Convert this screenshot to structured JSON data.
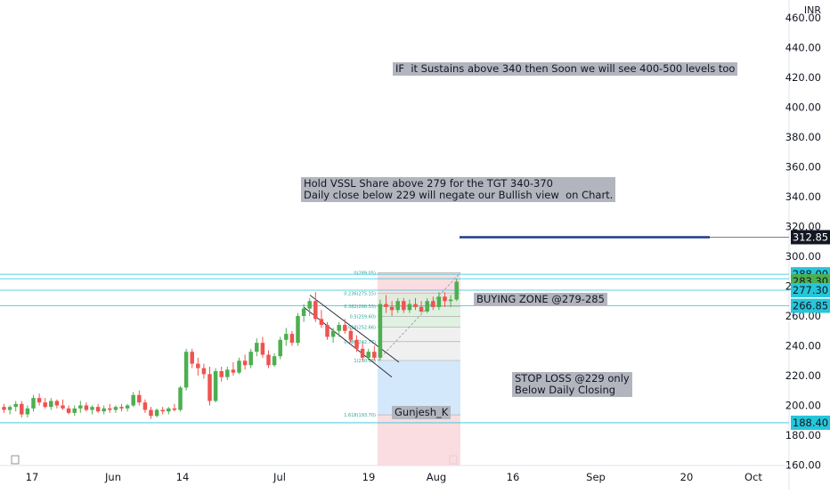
{
  "chart_data": {
    "type": "candlestick",
    "currency": "INR",
    "y_range": [
      160,
      465
    ],
    "y_ticks": [
      "160.00",
      "180.00",
      "200.00",
      "220.00",
      "240.00",
      "260.00",
      "280.00",
      "300.00",
      "320.00",
      "340.00",
      "360.00",
      "380.00",
      "400.00",
      "420.00",
      "440.00",
      "460.00"
    ],
    "x_ticks": [
      "17",
      "Jun",
      "14",
      "Jul",
      "19",
      "Aug",
      "16",
      "Sep",
      "20",
      "Oct"
    ],
    "price_badges": [
      {
        "value": "312.85",
        "price": 312.85,
        "color": "#131722"
      },
      {
        "value": "288.00",
        "price": 288.0,
        "color": "#26c6da"
      },
      {
        "value": "283.30",
        "price": 283.3,
        "color": "#4caf50"
      },
      {
        "value": "277.30",
        "price": 277.3,
        "color": "#26c6da"
      },
      {
        "value": "266.85",
        "price": 266.85,
        "color": "#26c6da"
      },
      {
        "value": "188.40",
        "price": 188.4,
        "color": "#26c6da"
      }
    ],
    "horizontal_lines": [
      {
        "price": 288.0,
        "color": "#26c6da"
      },
      {
        "price": 285.0,
        "color": "#26c6da"
      },
      {
        "price": 277.3,
        "color": "#26c6da"
      },
      {
        "price": 266.85,
        "color": "#26c6da"
      },
      {
        "price": 188.4,
        "color": "#26c6da"
      }
    ],
    "target_line": {
      "price": 312.85,
      "color": "#1e3a8a"
    },
    "candles": [
      [
        199,
        201,
        195,
        197
      ],
      [
        197,
        200,
        194,
        199
      ],
      [
        199,
        203,
        196,
        201
      ],
      [
        201,
        203,
        192,
        194
      ],
      [
        194,
        200,
        192,
        198
      ],
      [
        198,
        207,
        196,
        205
      ],
      [
        205,
        208,
        200,
        202
      ],
      [
        202,
        205,
        198,
        199
      ],
      [
        199,
        205,
        197,
        203
      ],
      [
        203,
        204,
        198,
        200
      ],
      [
        200,
        204,
        197,
        198
      ],
      [
        198,
        200,
        194,
        195
      ],
      [
        195,
        200,
        193,
        198
      ],
      [
        198,
        203,
        195,
        200
      ],
      [
        200,
        202,
        196,
        197
      ],
      [
        197,
        200,
        194,
        199
      ],
      [
        199,
        201,
        195,
        196
      ],
      [
        196,
        200,
        194,
        198
      ],
      [
        198,
        201,
        195,
        197
      ],
      [
        197,
        200,
        195,
        199
      ],
      [
        199,
        201,
        196,
        198
      ],
      [
        198,
        201,
        196,
        200
      ],
      [
        200,
        209,
        199,
        207
      ],
      [
        207,
        210,
        200,
        202
      ],
      [
        202,
        204,
        195,
        197
      ],
      [
        197,
        199,
        191,
        193
      ],
      [
        193,
        198,
        192,
        197
      ],
      [
        197,
        199,
        194,
        196
      ],
      [
        196,
        199,
        194,
        198
      ],
      [
        198,
        201,
        196,
        197
      ],
      [
        197,
        213,
        196,
        212
      ],
      [
        212,
        238,
        210,
        236
      ],
      [
        236,
        238,
        225,
        228
      ],
      [
        228,
        232,
        220,
        225
      ],
      [
        225,
        228,
        218,
        221
      ],
      [
        221,
        226,
        200,
        203
      ],
      [
        203,
        225,
        202,
        223
      ],
      [
        223,
        226,
        216,
        219
      ],
      [
        219,
        226,
        217,
        224
      ],
      [
        224,
        229,
        220,
        222
      ],
      [
        222,
        232,
        221,
        230
      ],
      [
        230,
        234,
        224,
        227
      ],
      [
        227,
        238,
        225,
        236
      ],
      [
        236,
        245,
        233,
        242
      ],
      [
        242,
        246,
        232,
        234
      ],
      [
        234,
        237,
        225,
        227
      ],
      [
        227,
        235,
        226,
        233
      ],
      [
        233,
        246,
        231,
        244
      ],
      [
        244,
        252,
        240,
        248
      ],
      [
        248,
        250,
        240,
        242
      ],
      [
        242,
        262,
        240,
        260
      ],
      [
        260,
        268,
        256,
        265
      ],
      [
        265,
        272,
        260,
        270
      ],
      [
        270,
        276,
        256,
        258
      ],
      [
        258,
        264,
        252,
        254
      ],
      [
        254,
        256,
        244,
        246
      ],
      [
        246,
        252,
        242,
        250
      ],
      [
        250,
        256,
        246,
        254
      ],
      [
        254,
        258,
        248,
        250
      ],
      [
        250,
        252,
        242,
        244
      ],
      [
        244,
        247,
        236,
        238
      ],
      [
        238,
        242,
        230,
        232
      ],
      [
        232,
        238,
        230,
        236
      ],
      [
        236,
        240,
        230,
        232
      ],
      [
        232,
        271,
        230,
        268
      ],
      [
        268,
        274,
        262,
        266
      ],
      [
        266,
        270,
        260,
        264
      ],
      [
        264,
        272,
        262,
        270
      ],
      [
        270,
        272,
        262,
        264
      ],
      [
        264,
        271,
        262,
        268
      ],
      [
        268,
        272,
        264,
        266
      ],
      [
        266,
        270,
        262,
        263
      ],
      [
        263,
        272,
        262,
        270
      ],
      [
        270,
        273,
        264,
        266
      ],
      [
        266,
        276,
        264,
        273
      ],
      [
        273,
        276,
        266,
        270
      ],
      [
        270,
        274,
        266,
        271
      ],
      [
        271,
        285,
        270,
        283
      ]
    ],
    "fib_levels": [
      {
        "label": "0(289.05)",
        "price": 289.05
      },
      {
        "label": "0.236(275.15)",
        "price": 275.15
      },
      {
        "label": "0.382(266.55)",
        "price": 266.55
      },
      {
        "label": "0.5(259.60)",
        "price": 259.6
      },
      {
        "label": "0.618(252.66)",
        "price": 252.66
      },
      {
        "label": "0.786(242.77)",
        "price": 242.77
      },
      {
        "label": "1(230.15)",
        "price": 230.15
      },
      {
        "label": "1.618(193.70)",
        "price": 193.7
      }
    ],
    "annotations": {
      "target_note": "IF  it Sustains above 340 then Soon we will see 400-500 levels too",
      "hold_note": "Hold VSSL Share above 279 for the TGT 340-370\nDaily close below 229 will negate our Bullish view  on Chart.",
      "buying_zone": "BUYING ZONE @279-285",
      "stop_loss": "STOP LOSS @229 only\nBelow Daily Closing",
      "author": "Gunjesh_K"
    }
  },
  "colors": {
    "up": "#4caf50",
    "down": "#ef5350",
    "grid_line": "#26c6da",
    "navy": "#1e3a8a"
  }
}
